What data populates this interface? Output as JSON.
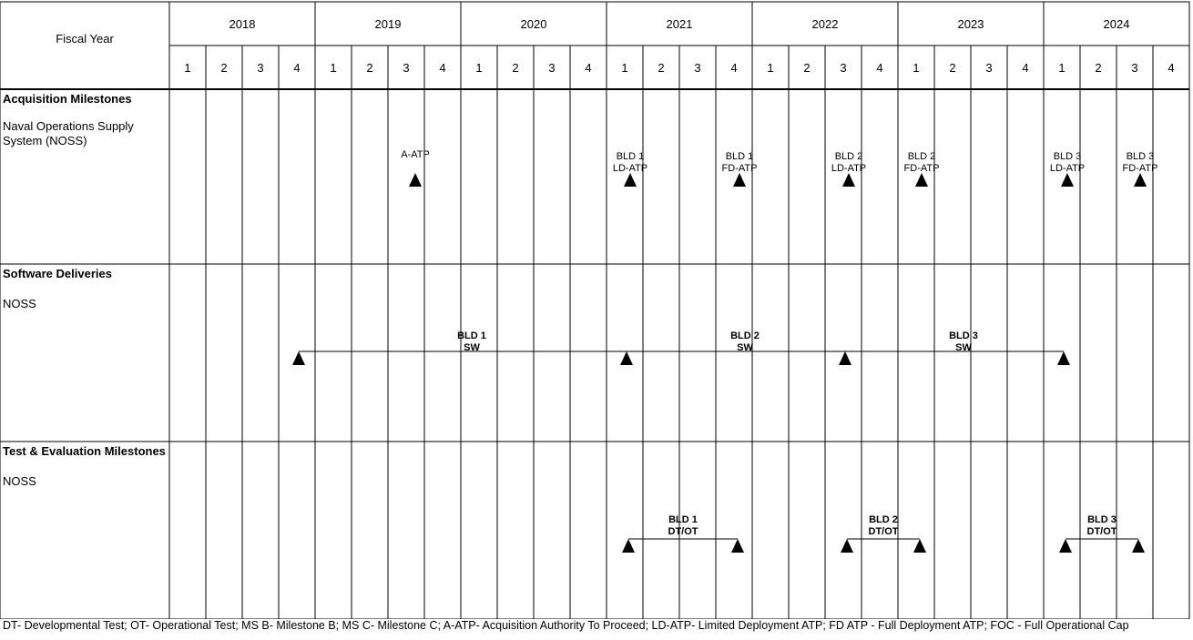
{
  "header": {
    "fiscal_year_label": "Fiscal Year",
    "years": [
      "2018",
      "2019",
      "2020",
      "2021",
      "2022",
      "2023",
      "2024"
    ],
    "quarters": [
      "1",
      "2",
      "3",
      "4"
    ]
  },
  "sections": [
    {
      "title": "Acquisition Milestones",
      "subtitle": "Naval Operations Supply System (NOSS)",
      "milestones": [
        {
          "label": [
            "A-ATP"
          ],
          "year": "2019",
          "quarter": 3
        },
        {
          "label": [
            "BLD 1",
            "LD-ATP"
          ],
          "year": "2021",
          "quarter": 1
        },
        {
          "label": [
            "BLD 1",
            "FD-ATP"
          ],
          "year": "2021",
          "quarter": 4
        },
        {
          "label": [
            "BLD 2",
            "LD-ATP"
          ],
          "year": "2022",
          "quarter": 3
        },
        {
          "label": [
            "BLD 2",
            "FD-ATP"
          ],
          "year": "2023",
          "quarter": 1
        },
        {
          "label": [
            "BLD 3",
            "LD-ATP"
          ],
          "year": "2024",
          "quarter": 1
        },
        {
          "label": [
            "BLD 3",
            "FD-ATP"
          ],
          "year": "2024",
          "quarter": 3
        }
      ]
    },
    {
      "title": "Software Deliveries",
      "subtitle": "NOSS",
      "spans": [
        {
          "label": [
            "BLD 1",
            "SW"
          ],
          "start": {
            "year": "2018",
            "quarter": 4
          },
          "end": {
            "year": "2021",
            "quarter": 1
          }
        },
        {
          "label": [
            "BLD 2",
            "SW"
          ],
          "start": {
            "year": "2021",
            "quarter": 1
          },
          "end": {
            "year": "2022",
            "quarter": 3
          }
        },
        {
          "label": [
            "BLD 3",
            "SW"
          ],
          "start": {
            "year": "2022",
            "quarter": 3
          },
          "end": {
            "year": "2024",
            "quarter": 1
          }
        }
      ]
    },
    {
      "title": "Test & Evaluation Milestones",
      "subtitle": "NOSS",
      "spans": [
        {
          "label": [
            "BLD 1",
            "DT/OT"
          ],
          "start": {
            "year": "2021",
            "quarter": 1
          },
          "end": {
            "year": "2021",
            "quarter": 4
          }
        },
        {
          "label": [
            "BLD 2",
            "DT/OT"
          ],
          "start": {
            "year": "2022",
            "quarter": 3
          },
          "end": {
            "year": "2023",
            "quarter": 1
          }
        },
        {
          "label": [
            "BLD 3",
            "DT/OT"
          ],
          "start": {
            "year": "2024",
            "quarter": 1
          },
          "end": {
            "year": "2024",
            "quarter": 3
          }
        }
      ]
    }
  ],
  "footnote": "DT- Developmental Test; OT- Operational Test; MS B- Milestone B; MS C- Milestone C; A-ATP- Acquisition Authority To Proceed; LD-ATP- Limited Deployment ATP; FD ATP - Full Deployment ATP; FOC - Full Operational Cap"
}
